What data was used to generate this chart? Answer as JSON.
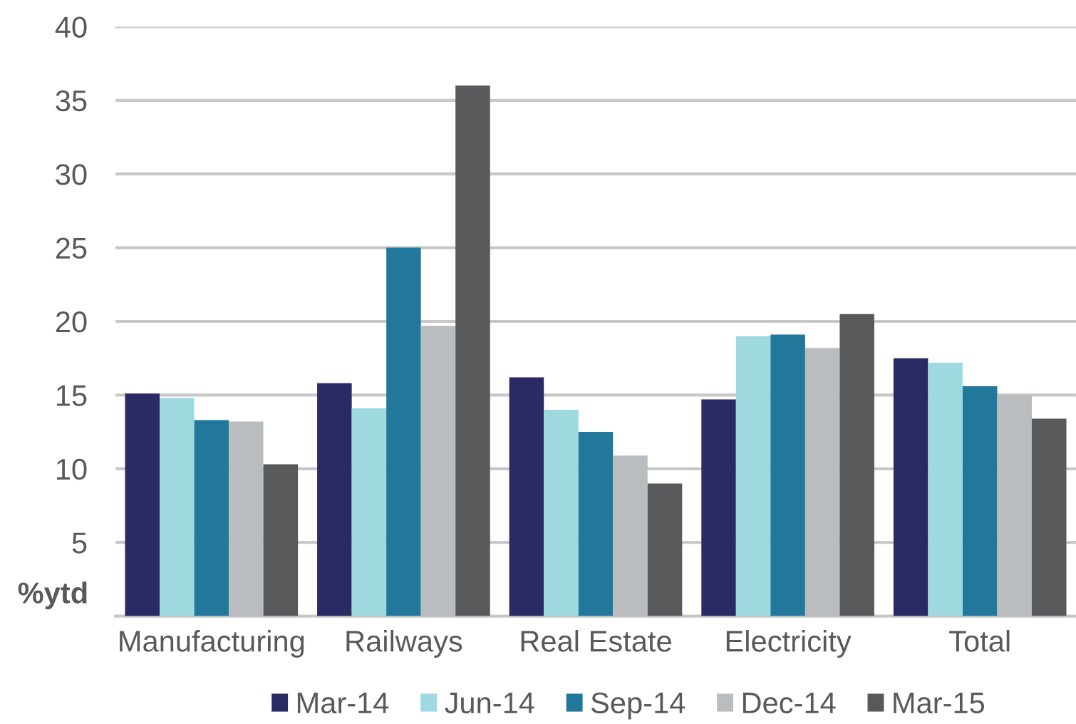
{
  "chart_data": {
    "type": "bar",
    "ylabel": "%ytd",
    "categories": [
      "Manufacturing",
      "Railways",
      "Real Estate",
      "Electricity",
      "Total"
    ],
    "series": [
      {
        "name": "Mar-14",
        "color": "#2a2a64",
        "values": [
          15.1,
          15.8,
          16.2,
          14.7,
          17.5
        ]
      },
      {
        "name": "Jun-14",
        "color": "#9fd9e0",
        "values": [
          14.8,
          14.1,
          14.0,
          19.0,
          17.2
        ]
      },
      {
        "name": "Sep-14",
        "color": "#21789b",
        "values": [
          13.3,
          25.0,
          12.5,
          19.1,
          15.6
        ]
      },
      {
        "name": "Dec-14",
        "color": "#babdc0",
        "values": [
          13.2,
          19.7,
          10.9,
          18.2,
          15.0
        ]
      },
      {
        "name": "Mar-15",
        "color": "#58595b",
        "values": [
          10.3,
          36.0,
          9.0,
          20.5,
          13.4
        ]
      }
    ],
    "ylim": [
      0,
      40
    ],
    "yticks": [
      5,
      10,
      15,
      20,
      25,
      30,
      35,
      40
    ],
    "grid": "y",
    "legend": "bottom"
  }
}
